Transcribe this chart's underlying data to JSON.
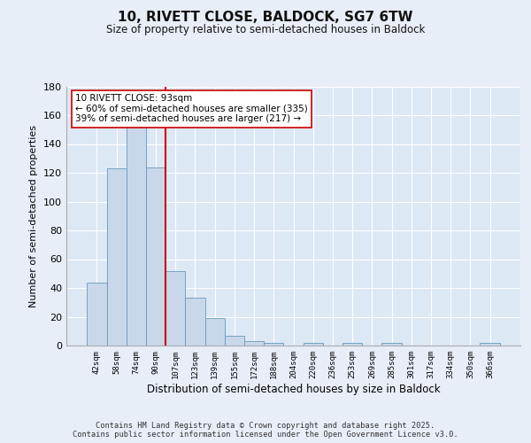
{
  "title": "10, RIVETT CLOSE, BALDOCK, SG7 6TW",
  "subtitle": "Size of property relative to semi-detached houses in Baldock",
  "xlabel": "Distribution of semi-detached houses by size in Baldock",
  "ylabel": "Number of semi-detached properties",
  "categories": [
    "42sqm",
    "58sqm",
    "74sqm",
    "90sqm",
    "107sqm",
    "123sqm",
    "139sqm",
    "155sqm",
    "172sqm",
    "188sqm",
    "204sqm",
    "220sqm",
    "236sqm",
    "253sqm",
    "269sqm",
    "285sqm",
    "301sqm",
    "317sqm",
    "334sqm",
    "350sqm",
    "366sqm"
  ],
  "bar_heights": [
    44,
    123,
    152,
    124,
    52,
    33,
    19,
    7,
    3,
    2,
    0,
    2,
    0,
    2,
    0,
    2,
    0,
    0,
    0,
    0,
    2
  ],
  "property_sqm": 93,
  "red_line_x": 3.5,
  "annotation_text": "10 RIVETT CLOSE: 93sqm\n← 60% of semi-detached houses are smaller (335)\n39% of semi-detached houses are larger (217) →",
  "bar_color": "#c8d8ea",
  "bar_edge_color": "#6699bb",
  "red_line_color": "#cc0000",
  "background_color": "#dde8f5",
  "grid_color": "#ffffff",
  "fig_background": "#e8eef8",
  "footer": "Contains HM Land Registry data © Crown copyright and database right 2025.\nContains public sector information licensed under the Open Government Licence v3.0.",
  "ylim": [
    0,
    180
  ],
  "yticks": [
    0,
    20,
    40,
    60,
    80,
    100,
    120,
    140,
    160,
    180
  ]
}
